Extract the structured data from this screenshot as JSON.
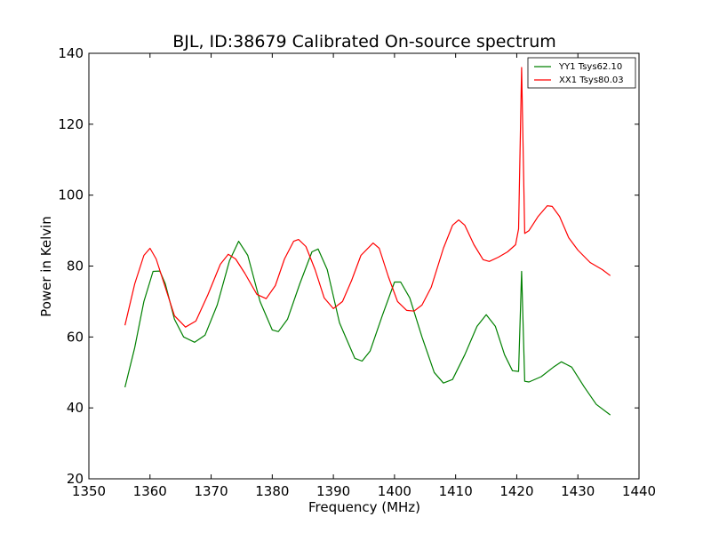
{
  "chart_data": {
    "type": "line",
    "title": "BJL, ID:38679 Calibrated On-source spectrum",
    "xlabel": "Frequency (MHz)",
    "ylabel": "Power in Kelvin",
    "xlim": [
      1350,
      1440
    ],
    "ylim": [
      20,
      140
    ],
    "xticks": [
      1350,
      1360,
      1370,
      1380,
      1390,
      1400,
      1410,
      1420,
      1430,
      1440
    ],
    "yticks": [
      20,
      40,
      60,
      80,
      100,
      120,
      140
    ],
    "grid": false,
    "legend_position": "top-right",
    "series": [
      {
        "name": "YY1 Tsys62.10",
        "color": "#008000",
        "x": [
          1355.9,
          1357.5,
          1359.0,
          1360.5,
          1361.6,
          1362.5,
          1364.0,
          1365.5,
          1367.3,
          1369.0,
          1371.0,
          1373.0,
          1374.5,
          1376.0,
          1378.0,
          1380.0,
          1381.0,
          1382.5,
          1384.5,
          1386.5,
          1387.5,
          1389.0,
          1391.0,
          1393.5,
          1394.7,
          1396.0,
          1398.0,
          1400.0,
          1401.0,
          1402.5,
          1404.5,
          1406.5,
          1408.0,
          1409.5,
          1411.5,
          1413.5,
          1415.0,
          1416.5,
          1418.0,
          1419.3,
          1420.3,
          1420.8,
          1421.3,
          1422.0,
          1424.0,
          1426.0,
          1427.3,
          1429.0,
          1431.0,
          1433.0,
          1435.3
        ],
        "y": [
          45.8,
          57.0,
          70.0,
          78.5,
          78.6,
          75.0,
          65.0,
          60.0,
          58.5,
          60.5,
          69.0,
          81.5,
          87.0,
          83.0,
          70.0,
          62.0,
          61.5,
          65.0,
          75.0,
          84.0,
          84.8,
          79.0,
          64.0,
          54.0,
          53.2,
          56.0,
          66.0,
          75.5,
          75.5,
          71.0,
          60.0,
          50.0,
          47.0,
          48.0,
          55.0,
          63.0,
          66.3,
          63.0,
          55.0,
          50.5,
          50.3,
          78.5,
          47.5,
          47.3,
          48.8,
          51.5,
          53.0,
          51.5,
          46.0,
          41.0,
          38.0
        ]
      },
      {
        "name": "XX1 Tsys80.03",
        "color": "#ff0000",
        "x": [
          1355.9,
          1357.5,
          1359.0,
          1360.0,
          1361.0,
          1362.5,
          1364.0,
          1365.8,
          1367.5,
          1369.5,
          1371.5,
          1372.8,
          1374.0,
          1375.5,
          1377.5,
          1379.0,
          1380.5,
          1382.0,
          1383.5,
          1384.3,
          1385.5,
          1387.0,
          1388.5,
          1390.0,
          1391.5,
          1393.0,
          1394.5,
          1396.5,
          1397.5,
          1399.0,
          1400.5,
          1402.0,
          1403.2,
          1404.5,
          1406.0,
          1408.0,
          1409.5,
          1410.5,
          1411.5,
          1413.0,
          1414.5,
          1415.5,
          1417.0,
          1418.5,
          1419.8,
          1420.3,
          1420.8,
          1421.3,
          1422.0,
          1423.5,
          1425.0,
          1425.8,
          1427.0,
          1428.5,
          1430.0,
          1432.0,
          1434.0,
          1435.3
        ],
        "y": [
          63.3,
          75.0,
          83.0,
          85.0,
          82.0,
          74.0,
          66.0,
          62.8,
          64.5,
          72.0,
          80.5,
          83.3,
          82.0,
          78.0,
          72.0,
          70.8,
          74.5,
          82.0,
          87.0,
          87.5,
          85.5,
          79.0,
          71.0,
          68.0,
          70.0,
          76.0,
          83.0,
          86.5,
          85.0,
          77.0,
          70.0,
          67.5,
          67.3,
          69.0,
          74.0,
          85.0,
          91.5,
          93.0,
          91.5,
          86.0,
          81.8,
          81.3,
          82.5,
          84.0,
          86.0,
          90.5,
          136.0,
          89.2,
          90.0,
          94.0,
          97.0,
          96.8,
          94.0,
          88.0,
          84.5,
          81.0,
          79.0,
          77.3
        ]
      }
    ]
  }
}
